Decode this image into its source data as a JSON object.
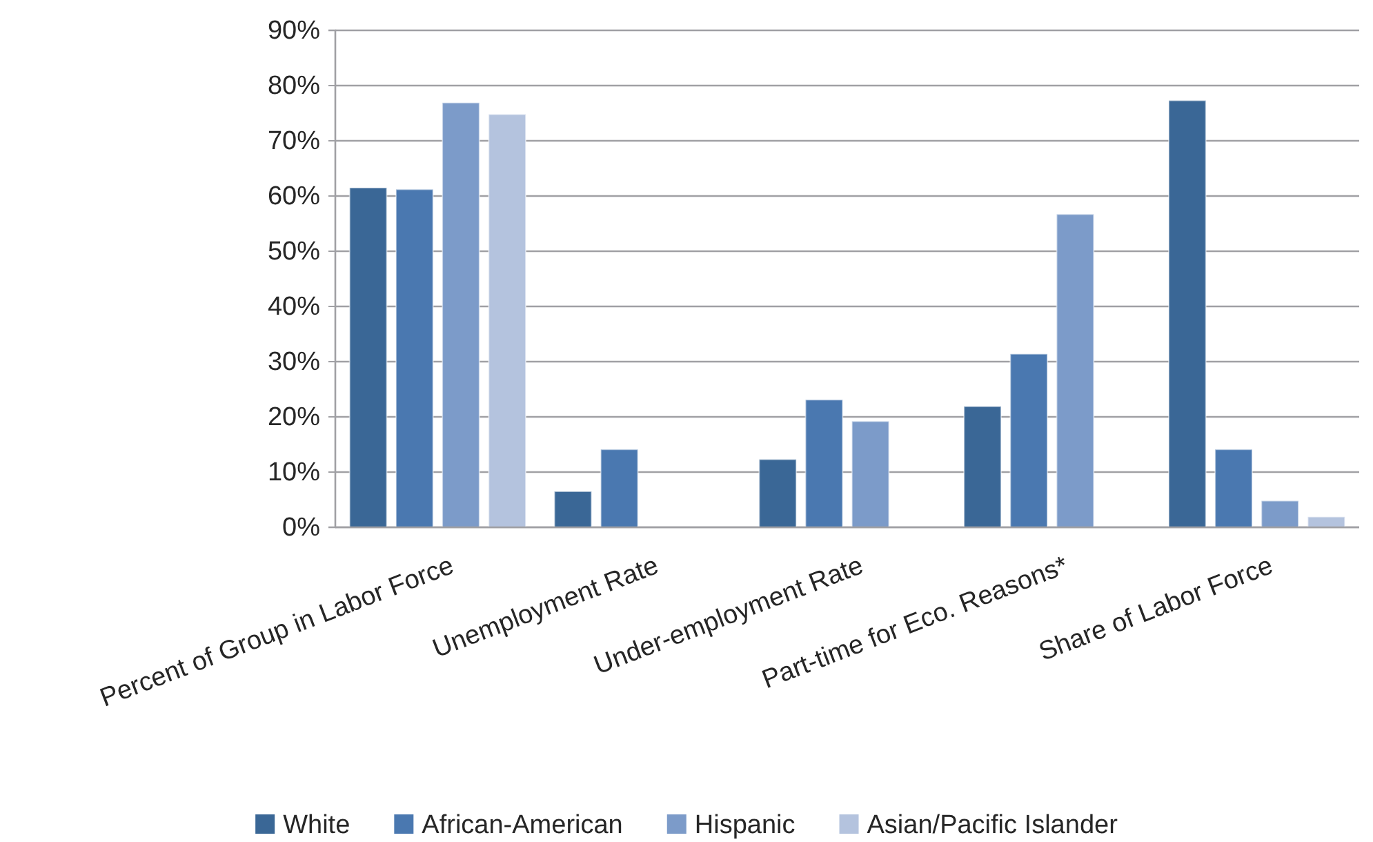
{
  "chart_data": {
    "type": "bar",
    "categories": [
      "Percent of Group in Labor Force",
      "Unemployment Rate",
      "Under-employment Rate",
      "Part-time for Eco. Reasons*",
      "Share of Labor Force"
    ],
    "series": [
      {
        "name": "White",
        "color": "#3a6796",
        "values": [
          61.5,
          6.5,
          12.3,
          21.9,
          77.3
        ]
      },
      {
        "name": "African-American",
        "color": "#4a78b0",
        "values": [
          61.2,
          14.1,
          23.1,
          31.4,
          14.1
        ]
      },
      {
        "name": "Hispanic",
        "color": "#7c9bc9",
        "values": [
          76.9,
          null,
          19.2,
          56.7,
          4.8
        ]
      },
      {
        "name": "Asian/Pacific Islander",
        "color": "#b4c3de",
        "values": [
          74.8,
          null,
          null,
          null,
          1.9
        ]
      }
    ],
    "ylim": [
      0,
      90
    ],
    "yticks": [
      {
        "value": 0,
        "label": "0%"
      },
      {
        "value": 10,
        "label": "10%"
      },
      {
        "value": 20,
        "label": "20%"
      },
      {
        "value": 30,
        "label": "30%"
      },
      {
        "value": 40,
        "label": "40%"
      },
      {
        "value": 50,
        "label": "50%"
      },
      {
        "value": 60,
        "label": "60%"
      },
      {
        "value": 70,
        "label": "70%"
      },
      {
        "value": 80,
        "label": "80%"
      },
      {
        "value": 90,
        "label": "90%"
      }
    ],
    "grid": "y",
    "legend": "bottom"
  }
}
